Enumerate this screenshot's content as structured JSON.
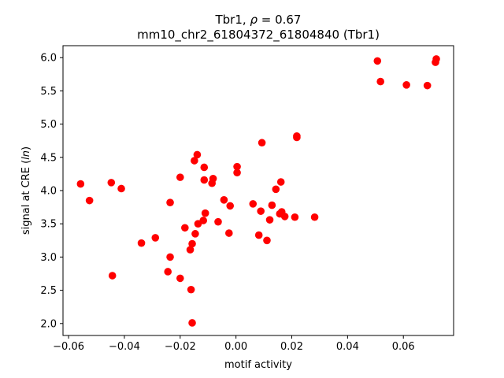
{
  "chart_data": {
    "type": "scatter",
    "title": "Tbr1, ρ = 0.67",
    "subtitle": "mm10_chr2_61804372_61804840 (Tbr1)",
    "xlabel": "motif activity",
    "ylabel": "signal at CRE (ln)",
    "xlim": [
      -0.062,
      0.078
    ],
    "ylim": [
      1.82,
      6.18
    ],
    "xticks": [
      -0.06,
      -0.04,
      -0.02,
      0.0,
      0.02,
      0.04,
      0.06
    ],
    "xtick_labels": [
      "−0.06",
      "−0.04",
      "−0.02",
      "0.00",
      "0.02",
      "0.04",
      "0.06"
    ],
    "yticks": [
      2.0,
      2.5,
      3.0,
      3.5,
      4.0,
      4.5,
      5.0,
      5.5,
      6.0
    ],
    "ytick_labels": [
      "2.0",
      "2.5",
      "3.0",
      "3.5",
      "4.0",
      "4.5",
      "5.0",
      "5.5",
      "6.0"
    ],
    "grid": false,
    "marker_color": "#ff0000",
    "points": [
      {
        "x": -0.0557,
        "y": 4.1
      },
      {
        "x": -0.0525,
        "y": 3.85
      },
      {
        "x": -0.0447,
        "y": 4.12
      },
      {
        "x": -0.0443,
        "y": 2.72
      },
      {
        "x": -0.0411,
        "y": 4.03
      },
      {
        "x": -0.0339,
        "y": 3.21
      },
      {
        "x": -0.0289,
        "y": 3.29
      },
      {
        "x": -0.0244,
        "y": 2.78
      },
      {
        "x": -0.0236,
        "y": 3.82
      },
      {
        "x": -0.0236,
        "y": 3.0
      },
      {
        "x": -0.02,
        "y": 4.2
      },
      {
        "x": -0.02,
        "y": 2.68
      },
      {
        "x": -0.0183,
        "y": 3.44
      },
      {
        "x": -0.0164,
        "y": 3.11
      },
      {
        "x": -0.0157,
        "y": 3.2
      },
      {
        "x": -0.0161,
        "y": 2.51
      },
      {
        "x": -0.0157,
        "y": 2.01
      },
      {
        "x": -0.0149,
        "y": 4.45
      },
      {
        "x": -0.0146,
        "y": 3.35
      },
      {
        "x": -0.0139,
        "y": 4.54
      },
      {
        "x": -0.0136,
        "y": 3.5
      },
      {
        "x": -0.0117,
        "y": 3.55
      },
      {
        "x": -0.0114,
        "y": 4.35
      },
      {
        "x": -0.0114,
        "y": 4.16
      },
      {
        "x": -0.011,
        "y": 3.66
      },
      {
        "x": -0.0086,
        "y": 4.11
      },
      {
        "x": -0.0082,
        "y": 4.18
      },
      {
        "x": -0.0064,
        "y": 3.53
      },
      {
        "x": -0.0043,
        "y": 3.86
      },
      {
        "x": -0.0025,
        "y": 3.36
      },
      {
        "x": -0.0021,
        "y": 3.77
      },
      {
        "x": 0.0004,
        "y": 4.36
      },
      {
        "x": 0.0004,
        "y": 4.27
      },
      {
        "x": 0.0061,
        "y": 3.8
      },
      {
        "x": 0.0082,
        "y": 3.33
      },
      {
        "x": 0.0089,
        "y": 3.69
      },
      {
        "x": 0.0093,
        "y": 4.72
      },
      {
        "x": 0.0111,
        "y": 3.25
      },
      {
        "x": 0.0121,
        "y": 3.56
      },
      {
        "x": 0.0129,
        "y": 3.78
      },
      {
        "x": 0.0143,
        "y": 4.02
      },
      {
        "x": 0.0157,
        "y": 3.65
      },
      {
        "x": 0.0161,
        "y": 4.13
      },
      {
        "x": 0.0164,
        "y": 3.68
      },
      {
        "x": 0.0175,
        "y": 3.61
      },
      {
        "x": 0.0211,
        "y": 3.6
      },
      {
        "x": 0.0218,
        "y": 4.8
      },
      {
        "x": 0.0218,
        "y": 4.82
      },
      {
        "x": 0.0282,
        "y": 3.6
      },
      {
        "x": 0.0507,
        "y": 5.95
      },
      {
        "x": 0.0518,
        "y": 5.64
      },
      {
        "x": 0.0611,
        "y": 5.59
      },
      {
        "x": 0.0686,
        "y": 5.58
      },
      {
        "x": 0.0715,
        "y": 5.93
      },
      {
        "x": 0.0718,
        "y": 5.98
      }
    ]
  }
}
